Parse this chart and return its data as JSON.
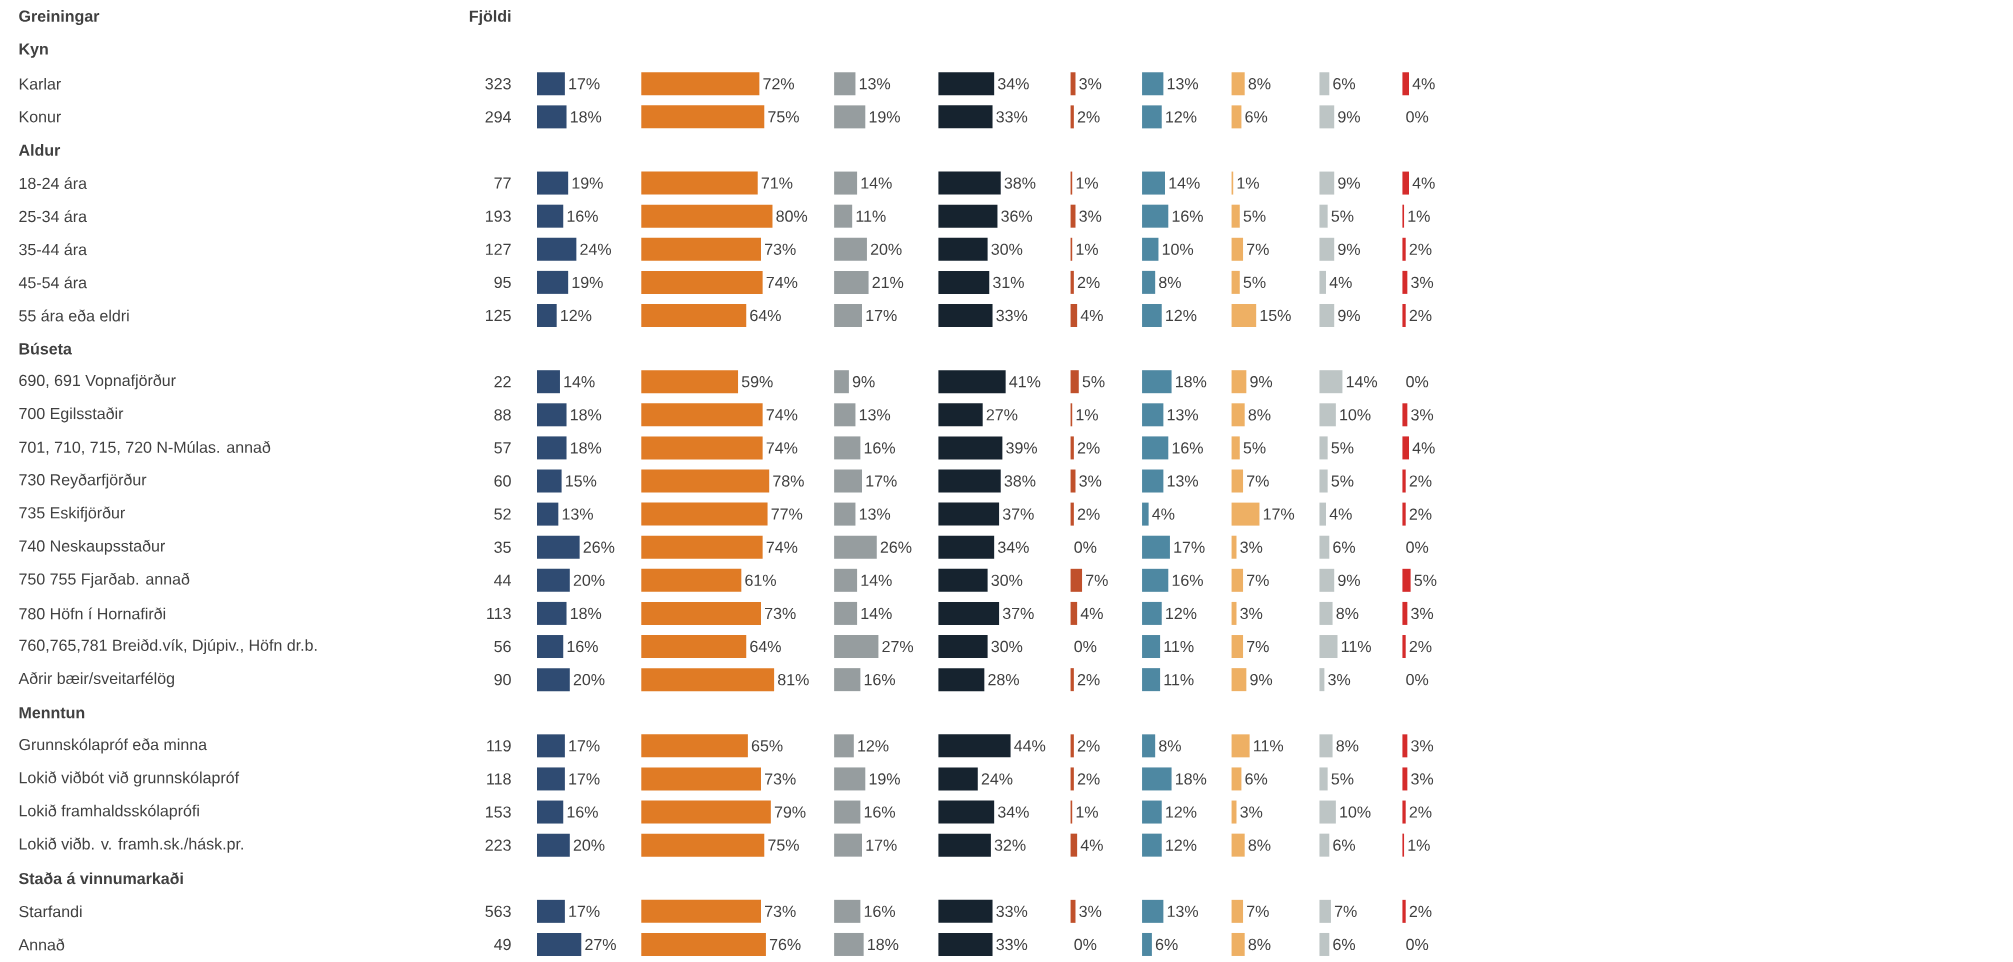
{
  "chart_data": [
    {
      "type": "other",
      "title": "Fjöldi",
      "values": [
        null,
        323,
        294,
        null,
        77,
        193,
        127,
        95,
        125,
        null,
        22,
        88,
        57,
        60,
        52,
        35,
        44,
        113,
        56,
        90,
        null,
        119,
        118,
        153,
        223,
        null,
        563,
        49
      ],
      "value_labels": [
        null,
        "323",
        "294",
        null,
        "77",
        "193",
        "127",
        "95",
        "125",
        null,
        "22",
        "88",
        "57",
        "60",
        "52",
        "35",
        "44",
        "113",
        "56",
        "90",
        null,
        "119",
        "118",
        "153",
        "223",
        null,
        "563",
        "49"
      ]
    },
    {
      "type": "bar",
      "orientation": "horizontal",
      "ylabel": "Greiningar",
      "categories": [
        "Kyn",
        "Karlar",
        "Konur",
        "Aldur",
        "18-24 ára",
        "25-34 ára",
        "35-44 ára",
        "45-54 ára",
        "55 ára eða eldri",
        "Búseta",
        "690, 691 Vopnafjörður",
        "700 Egilsstaðir",
        "701, 710, 715, 720 N-Múlas. annað",
        "730 Reyðarfjörður",
        "735 Eskifjörður",
        "740 Neskaupsstaður",
        "750 755 Fjarðab. annað",
        "780 Höfn í Hornafirði",
        "760,765,781 Breiðd.vík, Djúpiv., Höfn dr.b.",
        "Aðrir bæir/sveitarfélög",
        "Menntun",
        "Grunnskólapróf eða minna",
        "Lokið viðbót við grunnskólapróf",
        "Lokið framhaldsskólaprófi",
        "Lokið viðb. v. framh.sk./hásk.pr.",
        "Staða á vinnumarkaði",
        "Starfandi",
        "Annað"
      ],
      "color": "#2f4b72",
      "values": [
        null,
        17,
        18,
        null,
        19,
        16,
        24,
        19,
        12,
        null,
        14,
        18,
        18,
        15,
        13,
        26,
        20,
        18,
        16,
        20,
        null,
        17,
        17,
        16,
        20,
        null,
        17,
        27
      ],
      "value_labels": [
        null,
        "17%",
        "18%",
        null,
        "19%",
        "16%",
        "24%",
        "19%",
        "12%",
        null,
        "14%",
        "18%",
        "18%",
        "15%",
        "13%",
        "26%",
        "20%",
        "18%",
        "16%",
        "20%",
        null,
        "17%",
        "17%",
        "16%",
        "20%",
        null,
        "17%",
        "27%"
      ]
    },
    {
      "type": "bar",
      "orientation": "horizontal",
      "categories": [
        null,
        null,
        null,
        null,
        null,
        null,
        null,
        null,
        null,
        null,
        null,
        null,
        null,
        null,
        null,
        null,
        null,
        null,
        null,
        null,
        null,
        null,
        null,
        null,
        null,
        null,
        null,
        null
      ],
      "color": "#e07b25",
      "values": [
        null,
        72,
        75,
        null,
        71,
        80,
        73,
        74,
        64,
        null,
        59,
        74,
        74,
        78,
        77,
        74,
        61,
        73,
        64,
        81,
        null,
        65,
        73,
        79,
        75,
        null,
        73,
        76
      ],
      "value_labels": [
        null,
        "72%",
        "75%",
        null,
        "71%",
        "80%",
        "73%",
        "74%",
        "64%",
        null,
        "59%",
        "74%",
        "74%",
        "78%",
        "77%",
        "74%",
        "61%",
        "73%",
        "64%",
        "81%",
        null,
        "65%",
        "73%",
        "79%",
        "75%",
        null,
        "73%",
        "76%"
      ]
    },
    {
      "type": "bar",
      "orientation": "horizontal",
      "categories": [
        null,
        null,
        null,
        null,
        null,
        null,
        null,
        null,
        null,
        null,
        null,
        null,
        null,
        null,
        null,
        null,
        null,
        null,
        null,
        null,
        null,
        null,
        null,
        null,
        null,
        null,
        null,
        null
      ],
      "color": "#969d9f",
      "values": [
        null,
        13,
        19,
        null,
        14,
        11,
        20,
        21,
        17,
        null,
        9,
        13,
        16,
        17,
        13,
        26,
        14,
        14,
        27,
        16,
        null,
        12,
        19,
        16,
        17,
        null,
        16,
        18
      ],
      "value_labels": [
        null,
        "13%",
        "19%",
        null,
        "14%",
        "11%",
        "20%",
        "21%",
        "17%",
        null,
        "9%",
        "13%",
        "16%",
        "17%",
        "13%",
        "26%",
        "14%",
        "14%",
        "27%",
        "16%",
        null,
        "12%",
        "19%",
        "16%",
        "17%",
        null,
        "16%",
        "18%"
      ]
    },
    {
      "type": "bar",
      "orientation": "horizontal",
      "categories": [
        null,
        null,
        null,
        null,
        null,
        null,
        null,
        null,
        null,
        null,
        null,
        null,
        null,
        null,
        null,
        null,
        null,
        null,
        null,
        null,
        null,
        null,
        null,
        null,
        null,
        null,
        null,
        null
      ],
      "color": "#16232f",
      "values": [
        null,
        34,
        33,
        null,
        38,
        36,
        30,
        31,
        33,
        null,
        41,
        27,
        39,
        38,
        37,
        34,
        30,
        37,
        30,
        28,
        null,
        44,
        24,
        34,
        32,
        null,
        33,
        33
      ],
      "value_labels": [
        null,
        "34%",
        "33%",
        null,
        "38%",
        "36%",
        "30%",
        "31%",
        "33%",
        null,
        "41%",
        "27%",
        "39%",
        "38%",
        "37%",
        "34%",
        "30%",
        "37%",
        "30%",
        "28%",
        null,
        "44%",
        "24%",
        "34%",
        "32%",
        null,
        "33%",
        "33%"
      ]
    },
    {
      "type": "bar",
      "orientation": "horizontal",
      "categories": [
        null,
        null,
        null,
        null,
        null,
        null,
        null,
        null,
        null,
        null,
        null,
        null,
        null,
        null,
        null,
        null,
        null,
        null,
        null,
        null,
        null,
        null,
        null,
        null,
        null,
        null,
        null,
        null
      ],
      "color": "#c0502b",
      "values": [
        null,
        3,
        2,
        null,
        1,
        3,
        1,
        2,
        4,
        null,
        5,
        1,
        2,
        3,
        2,
        0,
        7,
        4,
        0,
        2,
        null,
        2,
        2,
        1,
        4,
        null,
        3,
        0
      ],
      "value_labels": [
        null,
        "3%",
        "2%",
        null,
        "1%",
        "3%",
        "1%",
        "2%",
        "4%",
        null,
        "5%",
        "1%",
        "2%",
        "3%",
        "2%",
        "0%",
        "7%",
        "4%",
        "0%",
        "2%",
        null,
        "2%",
        "2%",
        "1%",
        "4%",
        null,
        "3%",
        "0%"
      ]
    },
    {
      "type": "bar",
      "orientation": "horizontal",
      "categories": [
        null,
        null,
        null,
        null,
        null,
        null,
        null,
        null,
        null,
        null,
        null,
        null,
        null,
        null,
        null,
        null,
        null,
        null,
        null,
        null,
        null,
        null,
        null,
        null,
        null,
        null,
        null,
        null
      ],
      "color": "#4e88a2",
      "values": [
        null,
        13,
        12,
        null,
        14,
        16,
        10,
        8,
        12,
        null,
        18,
        13,
        16,
        13,
        4,
        17,
        16,
        12,
        11,
        11,
        null,
        8,
        18,
        12,
        12,
        null,
        13,
        6
      ],
      "value_labels": [
        null,
        "13%",
        "12%",
        null,
        "14%",
        "16%",
        "10%",
        "8%",
        "12%",
        null,
        "18%",
        "13%",
        "16%",
        "13%",
        "4%",
        "17%",
        "16%",
        "12%",
        "11%",
        "11%",
        null,
        "8%",
        "18%",
        "12%",
        "12%",
        null,
        "13%",
        "6%"
      ]
    },
    {
      "type": "bar",
      "orientation": "horizontal",
      "categories": [
        null,
        null,
        null,
        null,
        null,
        null,
        null,
        null,
        null,
        null,
        null,
        null,
        null,
        null,
        null,
        null,
        null,
        null,
        null,
        null,
        null,
        null,
        null,
        null,
        null,
        null,
        null,
        null
      ],
      "color": "#eeb064",
      "values": [
        null,
        8,
        6,
        null,
        1,
        5,
        7,
        5,
        15,
        null,
        9,
        8,
        5,
        7,
        17,
        3,
        7,
        3,
        7,
        9,
        null,
        11,
        6,
        3,
        8,
        null,
        7,
        8
      ],
      "value_labels": [
        null,
        "8%",
        "6%",
        null,
        "1%",
        "5%",
        "7%",
        "5%",
        "15%",
        null,
        "9%",
        "8%",
        "5%",
        "7%",
        "17%",
        "3%",
        "7%",
        "3%",
        "7%",
        "9%",
        null,
        "11%",
        "6%",
        "3%",
        "8%",
        null,
        "7%",
        "8%"
      ]
    },
    {
      "type": "bar",
      "orientation": "horizontal",
      "categories": [
        null,
        null,
        null,
        null,
        null,
        null,
        null,
        null,
        null,
        null,
        null,
        null,
        null,
        null,
        null,
        null,
        null,
        null,
        null,
        null,
        null,
        null,
        null,
        null,
        null,
        null,
        null,
        null
      ],
      "color": "#bdc5c5",
      "values": [
        null,
        6,
        9,
        null,
        9,
        5,
        9,
        4,
        9,
        null,
        14,
        10,
        5,
        5,
        4,
        6,
        9,
        8,
        11,
        3,
        null,
        8,
        5,
        10,
        6,
        null,
        7,
        6
      ],
      "value_labels": [
        null,
        "6%",
        "9%",
        null,
        "9%",
        "5%",
        "9%",
        "4%",
        "9%",
        null,
        "14%",
        "10%",
        "5%",
        "5%",
        "4%",
        "6%",
        "9%",
        "8%",
        "11%",
        "3%",
        null,
        "8%",
        "5%",
        "10%",
        "6%",
        null,
        "7%",
        "6%"
      ]
    },
    {
      "type": "bar",
      "orientation": "horizontal",
      "categories": [
        null,
        null,
        null,
        null,
        null,
        null,
        null,
        null,
        null,
        null,
        null,
        null,
        null,
        null,
        null,
        null,
        null,
        null,
        null,
        null,
        null,
        null,
        null,
        null,
        null,
        null,
        null,
        null
      ],
      "color": "#d52b2b",
      "values": [
        null,
        4,
        0,
        null,
        4,
        1,
        2,
        3,
        2,
        null,
        0,
        3,
        4,
        2,
        2,
        0,
        5,
        3,
        2,
        0,
        null,
        3,
        3,
        2,
        1,
        null,
        2,
        0
      ],
      "value_labels": [
        null,
        "4%",
        "0%",
        null,
        "4%",
        "1%",
        "2%",
        "3%",
        "2%",
        null,
        "0%",
        "3%",
        "4%",
        "2%",
        "2%",
        "0%",
        "5%",
        "3%",
        "2%",
        "0%",
        null,
        "3%",
        "3%",
        "2%",
        "1%",
        null,
        "2%",
        "0%"
      ]
    }
  ]
}
